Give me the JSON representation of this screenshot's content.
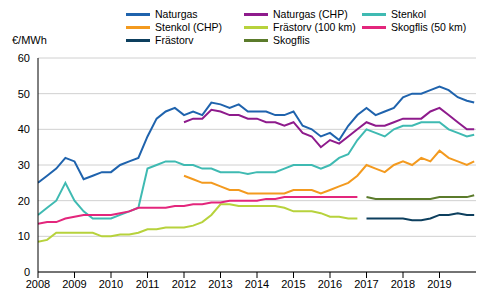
{
  "chart_data": {
    "type": "line",
    "y_label": "€/MWh",
    "x": [
      2008,
      2008.25,
      2008.5,
      2008.75,
      2009,
      2009.25,
      2009.5,
      2009.75,
      2010,
      2010.25,
      2010.5,
      2010.75,
      2011,
      2011.25,
      2011.5,
      2011.75,
      2012,
      2012.25,
      2012.5,
      2012.75,
      2013,
      2013.25,
      2013.5,
      2013.75,
      2014,
      2014.25,
      2014.5,
      2014.75,
      2015,
      2015.25,
      2015.5,
      2015.75,
      2016,
      2016.25,
      2016.5,
      2016.75,
      2017,
      2017.25,
      2017.5,
      2017.75,
      2018,
      2018.25,
      2018.5,
      2018.75,
      2019,
      2019.25,
      2019.5,
      2019.75,
      2019.95
    ],
    "xlim": [
      2008,
      2020
    ],
    "xticks": [
      2008,
      2009,
      2010,
      2011,
      2012,
      2013,
      2014,
      2015,
      2016,
      2017,
      2018,
      2019
    ],
    "ylim": [
      0,
      60
    ],
    "yticks": [
      0,
      10,
      20,
      30,
      40,
      50,
      60
    ],
    "grid": true,
    "legend": "top",
    "series": [
      {
        "name": "Naturgas",
        "color": "#1f63ad",
        "values": [
          25,
          27,
          29,
          32,
          31,
          26,
          27,
          28,
          28,
          30,
          31,
          32,
          38,
          43,
          45,
          46,
          44,
          45,
          44,
          47.5,
          47,
          46,
          47,
          45,
          45,
          45,
          44,
          44,
          45,
          41,
          40,
          38,
          39,
          37,
          41,
          44,
          46,
          44,
          45,
          46,
          49,
          50,
          50,
          51,
          52,
          51,
          49,
          48,
          47.5
        ]
      },
      {
        "name": "Naturgas (CHP)",
        "color": "#8e1b8c",
        "values": [
          null,
          null,
          null,
          null,
          null,
          null,
          null,
          null,
          null,
          null,
          null,
          null,
          null,
          null,
          null,
          null,
          42,
          43,
          43,
          45.5,
          45,
          44,
          44,
          43,
          43,
          42,
          42,
          41,
          42,
          39,
          38,
          35,
          37,
          36,
          38,
          40,
          42,
          41,
          41,
          42,
          43,
          43,
          43,
          45,
          46,
          44,
          42,
          40,
          40
        ]
      },
      {
        "name": "Stenkol",
        "color": "#3fbab2",
        "values": [
          16,
          18,
          20,
          25,
          20,
          17,
          15,
          15,
          15,
          16,
          17,
          18,
          29,
          30,
          31,
          31,
          30,
          30,
          29,
          29,
          28,
          28,
          28,
          27.5,
          28,
          28,
          28,
          29,
          30,
          30,
          30,
          29,
          30,
          32,
          33,
          37,
          40,
          39,
          38,
          40,
          41,
          41,
          42,
          42,
          42,
          40,
          39,
          38,
          38.5
        ]
      },
      {
        "name": "Stenkol (CHP)",
        "color": "#f39a1f",
        "values": [
          null,
          null,
          null,
          null,
          null,
          null,
          null,
          null,
          null,
          null,
          null,
          null,
          null,
          null,
          null,
          null,
          27,
          26,
          25,
          25,
          24,
          23,
          23,
          22,
          22,
          22,
          22,
          22,
          23,
          23,
          23,
          22,
          23,
          24,
          25,
          27,
          30,
          29,
          28,
          30,
          31,
          30,
          32,
          31,
          34,
          32,
          31,
          30,
          31
        ]
      },
      {
        "name": "Frästorv (100 km)",
        "color": "#b7d23c",
        "values": [
          8.5,
          9,
          11,
          11,
          11,
          11,
          11,
          10,
          10,
          10.5,
          10.5,
          11,
          12,
          12,
          12.5,
          12.5,
          12.5,
          13,
          14,
          16,
          19,
          19,
          18.5,
          18.5,
          18.5,
          18.5,
          18.5,
          18,
          17,
          17,
          17,
          16.5,
          15.5,
          15.5,
          15,
          15,
          null,
          null,
          null,
          null,
          null,
          null,
          null,
          null,
          null,
          null,
          null,
          null,
          null
        ]
      },
      {
        "name": "Skogflis (50 km)",
        "color": "#e3267c",
        "values": [
          13.5,
          14,
          14,
          15,
          15.5,
          16,
          16,
          16,
          16,
          16.5,
          17,
          18,
          18,
          18,
          18,
          18.5,
          18.5,
          19,
          19,
          19.5,
          19.5,
          20,
          20,
          20,
          20,
          20.5,
          20.5,
          21,
          21,
          21,
          21,
          21,
          21,
          21,
          21,
          21,
          null,
          null,
          null,
          null,
          null,
          null,
          null,
          null,
          null,
          null,
          null,
          null,
          null
        ]
      },
      {
        "name": "Frästorv",
        "color": "#0d3f5e",
        "values": [
          null,
          null,
          null,
          null,
          null,
          null,
          null,
          null,
          null,
          null,
          null,
          null,
          null,
          null,
          null,
          null,
          null,
          null,
          null,
          null,
          null,
          null,
          null,
          null,
          null,
          null,
          null,
          null,
          null,
          null,
          null,
          null,
          null,
          null,
          null,
          null,
          15,
          15,
          15,
          15,
          15,
          14.5,
          14.5,
          15,
          16,
          16,
          16.5,
          16,
          16
        ]
      },
      {
        "name": "Skogflis",
        "color": "#5b7b2b",
        "values": [
          null,
          null,
          null,
          null,
          null,
          null,
          null,
          null,
          null,
          null,
          null,
          null,
          null,
          null,
          null,
          null,
          null,
          null,
          null,
          null,
          null,
          null,
          null,
          null,
          null,
          null,
          null,
          null,
          null,
          null,
          null,
          null,
          null,
          null,
          null,
          null,
          21,
          20.5,
          20.5,
          20.5,
          20.5,
          20.5,
          20.5,
          20.5,
          21,
          21,
          21,
          21,
          21.5
        ]
      }
    ]
  }
}
